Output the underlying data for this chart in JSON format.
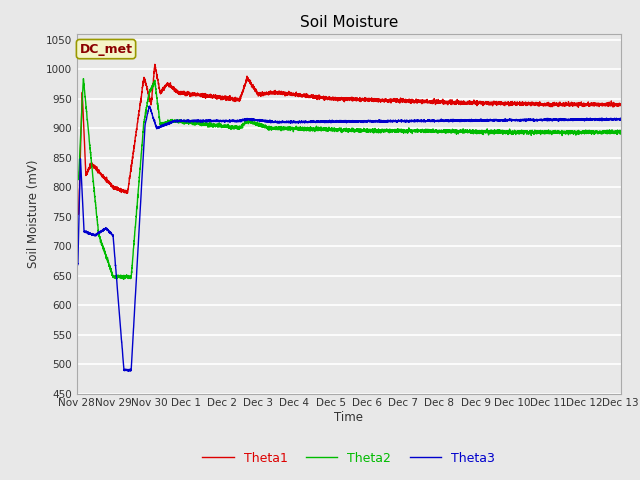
{
  "title": "Soil Moisture",
  "ylabel": "Soil Moisture (mV)",
  "xlabel": "Time",
  "ylim": [
    450,
    1060
  ],
  "yticks": [
    450,
    500,
    550,
    600,
    650,
    700,
    750,
    800,
    850,
    900,
    950,
    1000,
    1050
  ],
  "fig_bg_color": "#e8e8e8",
  "plot_bg_color": "#e8e8e8",
  "annotation_text": "DC_met",
  "annotation_color": "#8B0000",
  "annotation_bg": "#f5f5c8",
  "line_colors": {
    "theta1": "#dd0000",
    "theta2": "#00bb00",
    "theta3": "#0000cc"
  },
  "legend_labels": [
    "Theta1",
    "Theta2",
    "Theta3"
  ],
  "x_tick_labels": [
    "Nov 28",
    "Nov 29",
    "Nov 30",
    "Dec 1",
    "Dec 2",
    "Dec 3",
    "Dec 4",
    "Dec 5",
    "Dec 6",
    "Dec 7",
    "Dec 8",
    "Dec 9",
    "Dec 10",
    "Dec 11",
    "Dec 12",
    "Dec 13"
  ],
  "x_tick_positions": [
    0,
    1,
    2,
    3,
    4,
    5,
    6,
    7,
    8,
    9,
    10,
    11,
    12,
    13,
    14,
    15
  ],
  "xlim": [
    0,
    15
  ]
}
